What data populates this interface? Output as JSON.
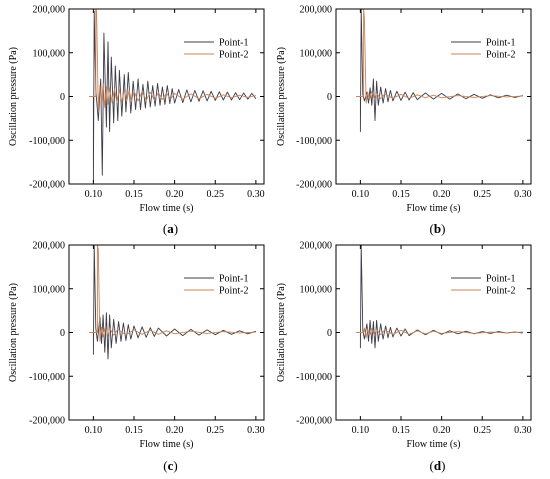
{
  "colors": {
    "point1": "#3d3d4a",
    "point2": "#c9845a",
    "axis": "#000000"
  },
  "chart_data": [
    {
      "type": "line",
      "caption_letter": "a",
      "xlabel": "Flow time (s)",
      "ylabel": "Oscillation pressure (Pa)",
      "xlim": [
        0.07,
        0.31
      ],
      "ylim": [
        -200000,
        200000
      ],
      "xticks": [
        "0.10",
        "0.15",
        "0.20",
        "0.25",
        "0.30"
      ],
      "yticks": [
        "200,000",
        "100,000",
        "0",
        "-100,000",
        "-200,000"
      ],
      "legend": "top-right",
      "series": [
        {
          "name": "Point-1",
          "color": "#3d3d4a",
          "x": [
            0.095,
            0.1,
            0.1,
            0.101,
            0.103,
            0.106,
            0.109,
            0.111,
            0.113,
            0.116,
            0.118,
            0.12,
            0.122,
            0.125,
            0.127,
            0.13,
            0.132,
            0.135,
            0.138,
            0.14,
            0.143,
            0.146,
            0.149,
            0.152,
            0.155,
            0.158,
            0.161,
            0.164,
            0.167,
            0.17,
            0.173,
            0.176,
            0.179,
            0.182,
            0.185,
            0.188,
            0.191,
            0.194,
            0.197,
            0.2,
            0.205,
            0.21,
            0.215,
            0.22,
            0.225,
            0.23,
            0.235,
            0.24,
            0.245,
            0.25,
            0.255,
            0.26,
            0.265,
            0.27,
            0.275,
            0.28,
            0.285,
            0.29,
            0.295,
            0.3
          ],
          "y": [
            0,
            0,
            -195000,
            195000,
            15000,
            -55000,
            40000,
            -180000,
            145000,
            -70000,
            125000,
            -80000,
            90000,
            -60000,
            70000,
            -55000,
            60000,
            -45000,
            50000,
            -35000,
            55000,
            -38000,
            35000,
            -30000,
            40000,
            -30000,
            28000,
            -26000,
            35000,
            -24000,
            25000,
            -22000,
            30000,
            -20000,
            22000,
            -18000,
            25000,
            -16000,
            18000,
            -15000,
            16000,
            -14000,
            15000,
            -12000,
            14000,
            -11000,
            13000,
            -10000,
            12000,
            -9000,
            11000,
            -8000,
            10000,
            -8000,
            9000,
            -7000,
            8000,
            -6000,
            7000,
            -5000
          ]
        },
        {
          "name": "Point-2",
          "color": "#c9845a",
          "x": [
            0.095,
            0.103,
            0.103,
            0.104,
            0.106,
            0.108,
            0.11,
            0.112,
            0.114,
            0.116,
            0.118,
            0.12,
            0.123,
            0.126,
            0.129,
            0.132,
            0.135,
            0.138,
            0.141,
            0.144,
            0.147,
            0.15,
            0.155,
            0.16,
            0.165,
            0.17,
            0.175,
            0.18,
            0.185,
            0.19,
            0.195,
            0.2,
            0.21,
            0.22,
            0.23,
            0.24,
            0.25,
            0.26,
            0.27,
            0.28,
            0.29,
            0.3
          ],
          "y": [
            0,
            0,
            200000,
            195000,
            -30000,
            25000,
            -20000,
            30000,
            -25000,
            22000,
            -18000,
            20000,
            -15000,
            18000,
            -14000,
            16000,
            -12000,
            15000,
            -11000,
            14000,
            -10000,
            12000,
            -10000,
            11000,
            -9000,
            10000,
            -8000,
            9000,
            -7000,
            8000,
            -6000,
            7000,
            -6000,
            6000,
            -5000,
            5000,
            -4000,
            4000,
            -3000,
            3000,
            -2000,
            2000
          ]
        }
      ]
    },
    {
      "type": "line",
      "caption_letter": "b",
      "xlabel": "Flow time (s)",
      "ylabel": "Oscillation pressure (Pa)",
      "xlim": [
        0.07,
        0.31
      ],
      "ylim": [
        -200000,
        200000
      ],
      "xticks": [
        "0.10",
        "0.15",
        "0.20",
        "0.25",
        "0.30"
      ],
      "yticks": [
        "200,000",
        "100,000",
        "0",
        "-100,000",
        "-200,000"
      ],
      "legend": "top-right",
      "series": [
        {
          "name": "Point-1",
          "color": "#3d3d4a",
          "x": [
            0.095,
            0.1,
            0.1,
            0.101,
            0.103,
            0.105,
            0.108,
            0.11,
            0.112,
            0.114,
            0.116,
            0.118,
            0.12,
            0.122,
            0.125,
            0.128,
            0.131,
            0.134,
            0.137,
            0.14,
            0.145,
            0.15,
            0.155,
            0.16,
            0.165,
            0.17,
            0.18,
            0.19,
            0.2,
            0.21,
            0.22,
            0.23,
            0.24,
            0.25,
            0.26,
            0.27,
            0.28,
            0.29,
            0.3
          ],
          "y": [
            0,
            0,
            -80000,
            200000,
            5000,
            -10000,
            10000,
            -15000,
            20000,
            -20000,
            40000,
            -55000,
            35000,
            -20000,
            22000,
            -15000,
            18000,
            -12000,
            14000,
            -10000,
            12000,
            -9000,
            10000,
            -8000,
            9000,
            -7000,
            8000,
            -6000,
            7000,
            -6000,
            6000,
            -5000,
            5000,
            -4000,
            4000,
            -3000,
            3000,
            -2000,
            2000
          ]
        },
        {
          "name": "Point-2",
          "color": "#c9845a",
          "x": [
            0.095,
            0.104,
            0.104,
            0.105,
            0.107,
            0.109,
            0.111,
            0.114,
            0.117,
            0.12,
            0.125,
            0.13,
            0.14,
            0.15,
            0.16,
            0.17,
            0.18,
            0.19,
            0.2,
            0.22,
            0.24,
            0.26,
            0.28,
            0.3
          ],
          "y": [
            0,
            0,
            200000,
            180000,
            -15000,
            10000,
            -8000,
            12000,
            -6000,
            8000,
            -5000,
            6000,
            -4000,
            5000,
            -4000,
            4000,
            -3000,
            3000,
            -3000,
            2000,
            -2000,
            2000,
            -1000,
            1000
          ]
        }
      ]
    },
    {
      "type": "line",
      "caption_letter": "c",
      "xlabel": "Flow time (s)",
      "ylabel": "Oscillation pressure (Pa)",
      "xlim": [
        0.07,
        0.31
      ],
      "ylim": [
        -200000,
        200000
      ],
      "xticks": [
        "0.10",
        "0.15",
        "0.20",
        "0.25",
        "0.30"
      ],
      "yticks": [
        "200,000",
        "100,000",
        "0",
        "-100,000",
        "-200,000"
      ],
      "legend": "top-right",
      "series": [
        {
          "name": "Point-1",
          "color": "#3d3d4a",
          "x": [
            0.095,
            0.1,
            0.1,
            0.101,
            0.103,
            0.105,
            0.108,
            0.11,
            0.112,
            0.114,
            0.116,
            0.118,
            0.12,
            0.122,
            0.125,
            0.128,
            0.131,
            0.134,
            0.137,
            0.14,
            0.143,
            0.146,
            0.15,
            0.155,
            0.16,
            0.165,
            0.17,
            0.175,
            0.18,
            0.19,
            0.2,
            0.21,
            0.22,
            0.23,
            0.24,
            0.25,
            0.26,
            0.27,
            0.28,
            0.29,
            0.3
          ],
          "y": [
            0,
            0,
            -50000,
            200000,
            10000,
            -20000,
            35000,
            -25000,
            40000,
            -45000,
            45000,
            -60000,
            40000,
            -35000,
            30000,
            -25000,
            25000,
            -20000,
            22000,
            -18000,
            18000,
            -15000,
            15000,
            -12000,
            13000,
            -11000,
            11000,
            -9000,
            10000,
            -8000,
            8000,
            -7000,
            7000,
            -6000,
            6000,
            -5000,
            5000,
            -4000,
            4000,
            -3000,
            3000
          ]
        },
        {
          "name": "Point-2",
          "color": "#c9845a",
          "x": [
            0.095,
            0.105,
            0.105,
            0.106,
            0.108,
            0.11,
            0.112,
            0.115,
            0.118,
            0.12,
            0.125,
            0.13,
            0.14,
            0.15,
            0.16,
            0.17,
            0.18,
            0.19,
            0.2,
            0.22,
            0.24,
            0.26,
            0.28,
            0.3
          ],
          "y": [
            0,
            0,
            200000,
            190000,
            -20000,
            12000,
            -10000,
            14000,
            -8000,
            10000,
            -6000,
            7000,
            -5000,
            6000,
            -4000,
            5000,
            -4000,
            4000,
            -3000,
            3000,
            -2000,
            2000,
            -1000,
            1000
          ]
        }
      ]
    },
    {
      "type": "line",
      "caption_letter": "d",
      "xlabel": "Flow time (s)",
      "ylabel": "Oscillation pressure (Pa)",
      "xlim": [
        0.07,
        0.31
      ],
      "ylim": [
        -200000,
        200000
      ],
      "xticks": [
        "0.10",
        "0.15",
        "0.20",
        "0.25",
        "0.30"
      ],
      "yticks": [
        "200,000",
        "100,000",
        "0",
        "-100,000",
        "-200,000"
      ],
      "legend": "top-right",
      "series": [
        {
          "name": "Point-1",
          "color": "#3d3d4a",
          "x": [
            0.095,
            0.1,
            0.1,
            0.101,
            0.103,
            0.105,
            0.108,
            0.11,
            0.112,
            0.114,
            0.116,
            0.118,
            0.12,
            0.122,
            0.125,
            0.128,
            0.131,
            0.134,
            0.137,
            0.14,
            0.145,
            0.15,
            0.155,
            0.16,
            0.17,
            0.18,
            0.19,
            0.2,
            0.21,
            0.22,
            0.23,
            0.24,
            0.25,
            0.26,
            0.27,
            0.28,
            0.29,
            0.3
          ],
          "y": [
            0,
            0,
            -35000,
            200000,
            5000,
            -15000,
            20000,
            -20000,
            28000,
            -25000,
            25000,
            -35000,
            28000,
            -20000,
            20000,
            -15000,
            15000,
            -12000,
            12000,
            -10000,
            10000,
            -8000,
            8000,
            -7000,
            6000,
            -5000,
            5000,
            -4000,
            4000,
            -3000,
            3000,
            -3000,
            2000,
            -2000,
            2000,
            -1000,
            1000,
            -1000
          ]
        },
        {
          "name": "Point-2",
          "color": "#c9845a",
          "x": [
            0.095,
            0.104,
            0.105,
            0.107,
            0.109,
            0.111,
            0.114,
            0.117,
            0.12,
            0.125,
            0.13,
            0.14,
            0.15,
            0.16,
            0.17,
            0.18,
            0.19,
            0.2,
            0.22,
            0.24,
            0.26,
            0.28,
            0.3
          ],
          "y": [
            0,
            0,
            10000,
            -12000,
            8000,
            -7000,
            9000,
            -6000,
            7000,
            -5000,
            6000,
            -4000,
            5000,
            -4000,
            4000,
            -3000,
            3000,
            -2000,
            2000,
            -2000,
            1000,
            -1000,
            1000
          ]
        }
      ]
    }
  ]
}
